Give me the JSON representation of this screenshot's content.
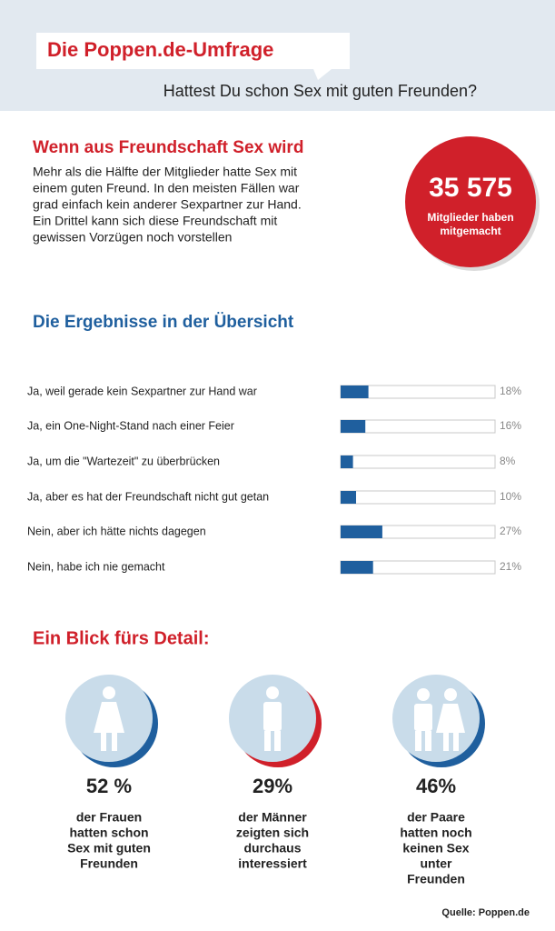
{
  "header": {
    "title": "Die Poppen.de-Umfrage",
    "question": "Hattest Du schon Sex mit guten Freunden?"
  },
  "intro": {
    "heading": "Wenn aus Freundschaft Sex wird",
    "lines": [
      "Mehr als die Hälfte der Mitglieder hatte Sex mit",
      "einem guten Freund. In den meisten Fällen war",
      "grad einfach kein anderer Sexpartner zur Hand.",
      "Ein Drittel kann sich diese Freundschaft mit",
      "gewissen Vorzügen noch vorstellen"
    ]
  },
  "stat": {
    "number": "35 575",
    "lines": [
      "Mitglieder haben",
      "mitgemacht"
    ]
  },
  "chart_data": {
    "type": "bar",
    "title": "Die Ergebnisse in der Übersicht",
    "categories": [
      "Ja, weil gerade kein Sexpartner zur Hand war",
      "Ja, ein One-Night-Stand nach einer Feier",
      "Ja, um die \"Wartezeit\" zu überbrücken",
      "Ja, aber es hat der Freundschaft nicht gut getan",
      "Nein, aber ich hätte nichts dagegen",
      "Nein, habe ich nie gemacht"
    ],
    "values": [
      18,
      16,
      8,
      10,
      27,
      21
    ],
    "value_labels": [
      "18%",
      "16%",
      "8%",
      "10%",
      "27%",
      "21%"
    ],
    "xlim": [
      0,
      100
    ],
    "color": "#1f5f9e"
  },
  "details": {
    "heading": "Ein Blick fürs Detail:",
    "items": [
      {
        "percent": "52 %",
        "lines": [
          "der Frauen",
          "hatten schon",
          "Sex mit guten",
          "Freunden"
        ]
      },
      {
        "percent": "29%",
        "lines": [
          "der Männer",
          "zeigten sich",
          "durchaus",
          "interessiert"
        ]
      },
      {
        "percent": "46%",
        "lines": [
          "der Paare",
          "hatten noch",
          "keinen Sex",
          "unter",
          "Freunden"
        ]
      }
    ]
  },
  "source": "Quelle: Poppen.de"
}
